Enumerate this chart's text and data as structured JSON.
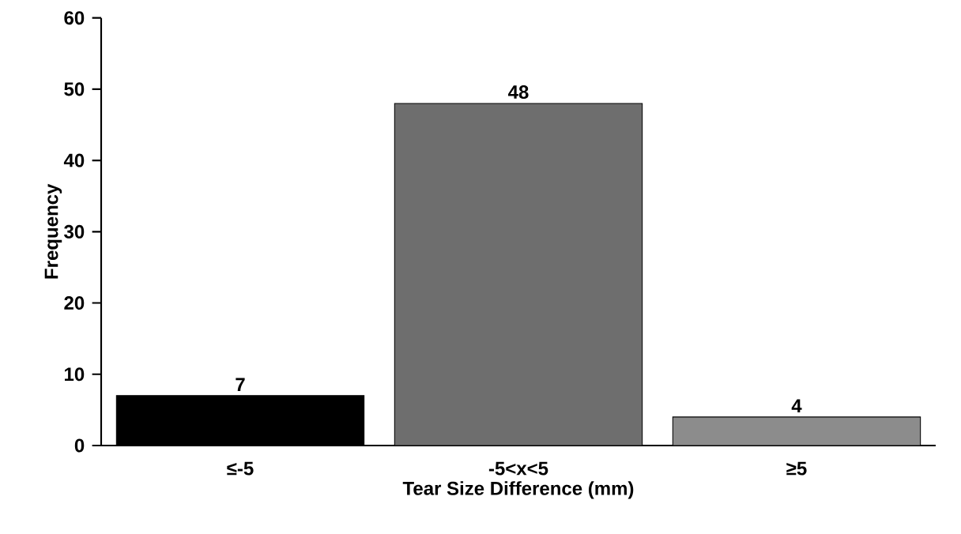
{
  "chart_data": {
    "type": "bar",
    "xlabel": "Tear Size Difference (mm)",
    "ylabel": "Frequency",
    "categories": [
      "≤-5",
      "-5<x<5",
      "≥5"
    ],
    "values": [
      7,
      48,
      4
    ],
    "colors": [
      "#000000",
      "#6e6e6e",
      "#8c8c8c"
    ],
    "ylim": [
      0,
      60
    ],
    "yticks": [
      0,
      10,
      20,
      30,
      40,
      50,
      60
    ],
    "data_labels": true
  }
}
